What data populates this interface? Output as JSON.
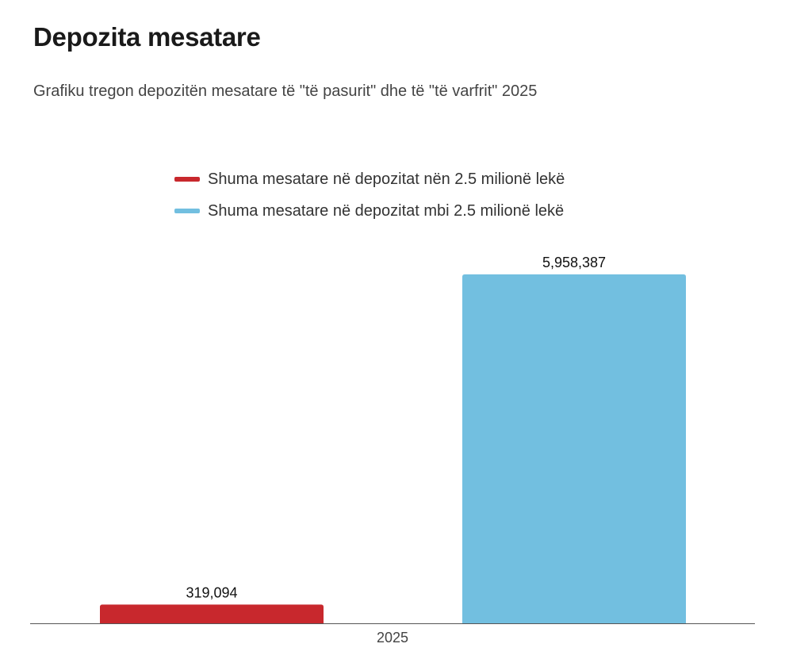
{
  "header": {
    "title": "Depozita mesatare",
    "subtitle": "Grafiku tregon depozitën mesatare të \"të pasurit\" dhe të \"të varfrit\" 2025"
  },
  "legend": {
    "items": [
      {
        "label": "Shuma mesatare në depozitat nën 2.5 milionë lekë",
        "color": "#c8282d"
      },
      {
        "label": "Shuma mesatare në depozitat mbi 2.5 milionë lekë",
        "color": "#72bfe0"
      }
    ]
  },
  "chart_data": {
    "type": "bar",
    "title": "Depozita mesatare",
    "subtitle": "Grafiku tregon depozitën mesatare të \"të pasurit\" dhe të \"të varfrit\" 2025",
    "categories": [
      "2025"
    ],
    "series": [
      {
        "name": "Shuma mesatare në depozitat nën 2.5 milionë lekë",
        "color": "#c8282d",
        "values": [
          319094
        ],
        "labels": [
          "319,094"
        ]
      },
      {
        "name": "Shuma mesatare në depozitat mbi 2.5 milionë lekë",
        "color": "#72bfe0",
        "values": [
          5958387
        ],
        "labels": [
          "5,958,387"
        ]
      }
    ],
    "xlabel": "",
    "ylabel": "",
    "ylim": [
      0,
      5958387
    ],
    "grid": false,
    "legend_position": "top-center"
  }
}
